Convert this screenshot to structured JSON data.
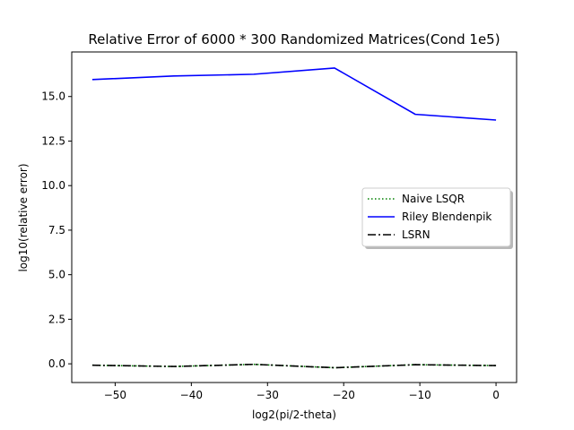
{
  "chart_data": {
    "type": "line",
    "title": "Relative Error of 6000 * 300 Randomized Matrices(Cond 1e5)",
    "xlabel": "log2(pi/2-theta)",
    "ylabel": "log10(relative error)",
    "xlim": [
      -55.7,
      2.7
    ],
    "ylim": [
      -1.05,
      17.5
    ],
    "xticks": [
      -50,
      -40,
      -30,
      -20,
      -10,
      0
    ],
    "xtick_labels": [
      "−50",
      "−40",
      "−30",
      "−20",
      "−10",
      "0"
    ],
    "yticks": [
      0.0,
      2.5,
      5.0,
      7.5,
      10.0,
      12.5,
      15.0
    ],
    "ytick_labels": [
      "0.0",
      "2.5",
      "5.0",
      "7.5",
      "10.0",
      "12.5",
      "15.0"
    ],
    "grid": false,
    "legend_position": "center-right",
    "x": [
      -53,
      -42.3,
      -31.8,
      -21.2,
      -10.6,
      0
    ],
    "series": [
      {
        "name": "Naive LSQR",
        "color": "#008000",
        "style": "dotted",
        "values": [
          -0.08,
          -0.15,
          -0.03,
          -0.22,
          -0.05,
          -0.1
        ]
      },
      {
        "name": "Riley Blendenpik",
        "color": "#0000ff",
        "style": "solid",
        "values": [
          15.95,
          16.15,
          16.25,
          16.6,
          14.0,
          13.68
        ]
      },
      {
        "name": "LSRN",
        "color": "#000000",
        "style": "dashdot",
        "values": [
          -0.08,
          -0.15,
          -0.03,
          -0.22,
          -0.05,
          -0.1
        ]
      }
    ]
  }
}
